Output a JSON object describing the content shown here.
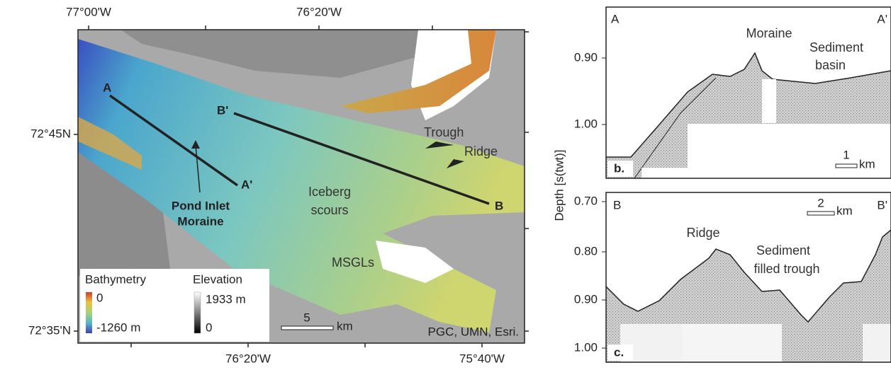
{
  "map": {
    "top_labels": [
      "77°00'W",
      "76°20'W"
    ],
    "bottom_labels": [
      "76°20'W",
      "75°40'W"
    ],
    "left_labels": [
      "72°45N",
      "72°35'N"
    ],
    "annotations": {
      "a_start": "A",
      "a_end": "A'",
      "b_start": "B",
      "b_end": "B'",
      "pond_inlet": [
        "Pond Inlet",
        "Moraine"
      ],
      "trough": "Trough",
      "ridge": "Ridge",
      "iceberg": [
        "Iceberg",
        "scours"
      ],
      "msgls": "MSGLs"
    },
    "legend": {
      "bathymetry": "Bathymetry",
      "bathy_top": "0",
      "bathy_bottom": "-1260 m",
      "elevation": "Elevation",
      "elev_top": "1933 m",
      "elev_bottom": "0"
    },
    "scale": {
      "value": "5",
      "unit": "km"
    },
    "credit": "PGC, UMN, Esri."
  },
  "y_axis_label": "Depth [s(twt)]",
  "profile_b": {
    "start": "A",
    "end": "A'",
    "moraine": "Moraine",
    "basin": [
      "Sediment",
      "basin"
    ],
    "yticks": [
      "0.90",
      "1.00"
    ],
    "panel": "b.",
    "scale": {
      "value": "1",
      "unit": "km"
    }
  },
  "profile_c": {
    "start": "B",
    "end": "B'",
    "ridge": "Ridge",
    "trough": [
      "Sediment",
      "filled trough"
    ],
    "yticks": [
      "0.70",
      "0.80",
      "0.90",
      "1.00"
    ],
    "panel": "c.",
    "scale": {
      "value": "2",
      "unit": "km"
    }
  }
}
